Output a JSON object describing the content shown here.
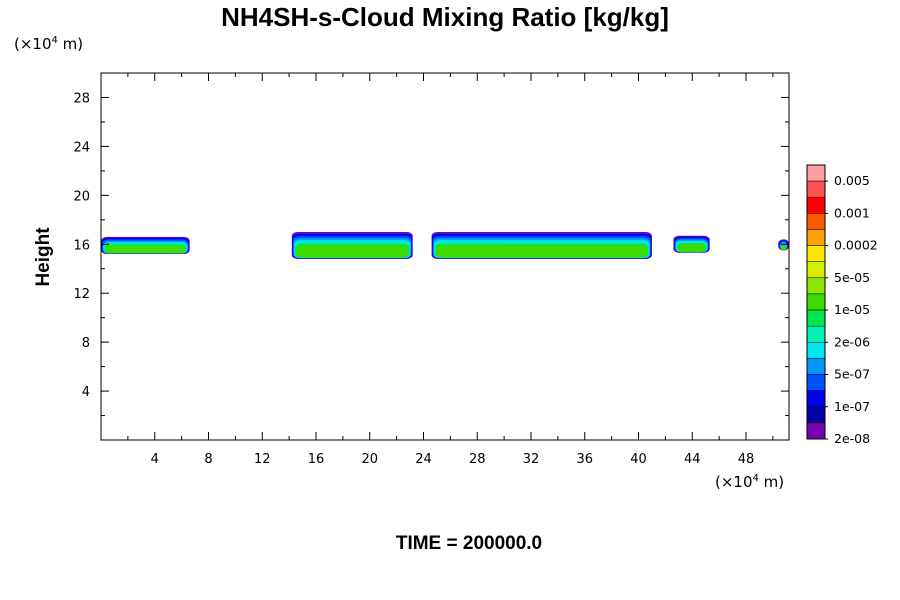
{
  "chart_data": {
    "type": "contour",
    "title": "NH4SH-s-Cloud Mixing Ratio [kg/kg]",
    "ylabel": "Height",
    "y_unit": {
      "prefix": "(×10",
      "exp": "4",
      "suffix": " m)"
    },
    "x_unit": {
      "prefix": "(×10",
      "exp": "4",
      "suffix": " m)"
    },
    "xlim": [
      0,
      51.2
    ],
    "ylim": [
      0,
      30
    ],
    "x_ticks": [
      4,
      8,
      12,
      16,
      20,
      24,
      28,
      32,
      36,
      40,
      44,
      48
    ],
    "x_tick_labels": [
      "4",
      "8",
      "12",
      "16",
      "20",
      "24",
      "28",
      "32",
      "36",
      "40",
      "44",
      "48"
    ],
    "y_ticks": [
      4,
      8,
      12,
      16,
      20,
      24,
      28
    ],
    "y_tick_labels": [
      "4",
      "8",
      "12",
      "16",
      "20",
      "24",
      "28"
    ],
    "colorbar": {
      "colors": [
        "#ffa0a0",
        "#ff5050",
        "#ff0000",
        "#ff5a00",
        "#ffa000",
        "#ffe600",
        "#d2f000",
        "#8ce600",
        "#3cdc00",
        "#00e650",
        "#00f0b4",
        "#00e6f0",
        "#0096ff",
        "#0050ff",
        "#0000f0",
        "#0000a0",
        "#7800b4"
      ],
      "labels": [
        "0.005",
        "0.001",
        "0.0002",
        "5e-05",
        "1e-05",
        "2e-06",
        "5e-07",
        "1e-07",
        "2e-08"
      ]
    },
    "cloud_layers": [
      {
        "x_start": 0.0,
        "x_end": 6.6,
        "y_bottom": 15.2,
        "y_top": 16.6
      },
      {
        "x_start": 14.2,
        "x_end": 23.2,
        "y_bottom": 14.8,
        "y_top": 17.0
      },
      {
        "x_start": 24.6,
        "x_end": 41.0,
        "y_bottom": 14.8,
        "y_top": 17.0
      },
      {
        "x_start": 42.6,
        "x_end": 45.3,
        "y_bottom": 15.3,
        "y_top": 16.7
      },
      {
        "x_start": 50.4,
        "x_end": 51.2,
        "y_bottom": 15.5,
        "y_top": 16.4
      }
    ],
    "footer": "TIME = 200000.0"
  }
}
